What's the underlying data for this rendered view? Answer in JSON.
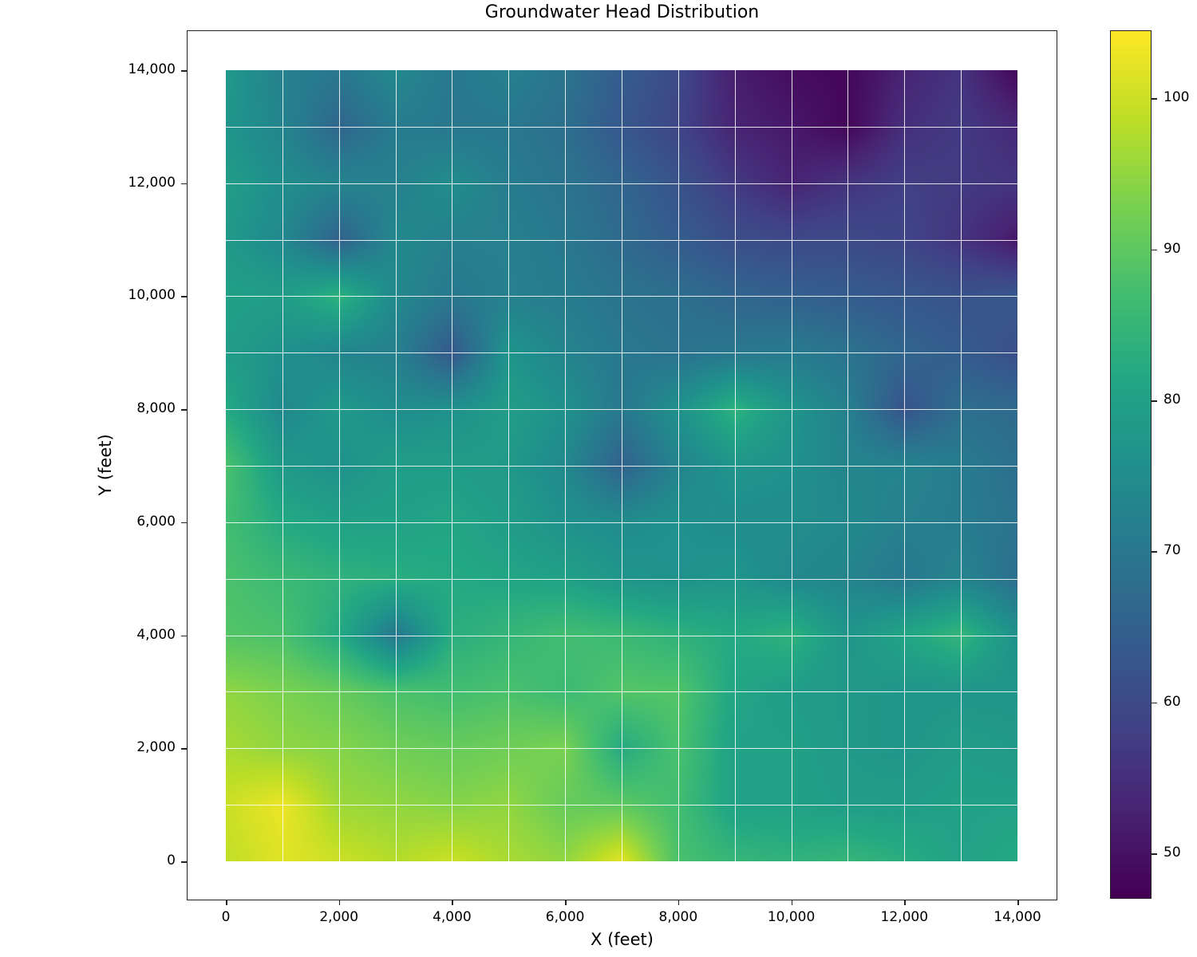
{
  "chart_data": {
    "type": "heatmap",
    "title": "Groundwater Head Distribution",
    "xlabel": "X (feet)",
    "ylabel": "Y (feet)",
    "xlim": [
      -700,
      14700
    ],
    "ylim": [
      -700,
      14700
    ],
    "x_ticks": [
      0,
      2000,
      4000,
      6000,
      8000,
      10000,
      12000,
      14000
    ],
    "x_tick_labels": [
      "0",
      "2,000",
      "4,000",
      "6,000",
      "8,000",
      "10,000",
      "12,000",
      "14,000"
    ],
    "y_ticks": [
      0,
      2000,
      4000,
      6000,
      8000,
      10000,
      12000,
      14000
    ],
    "y_tick_labels": [
      "0",
      "2,000",
      "4,000",
      "6,000",
      "8,000",
      "10,000",
      "12,000",
      "14,000"
    ],
    "grid": true,
    "grid_spacing": 1000,
    "colormap": "viridis",
    "colorbar": {
      "vmin": 47,
      "vmax": 104.5,
      "ticks": [
        50,
        60,
        70,
        80,
        90,
        100
      ],
      "tick_labels": [
        "50",
        "60",
        "70",
        "80",
        "90",
        "100"
      ]
    },
    "x": [
      0,
      1000,
      2000,
      3000,
      4000,
      5000,
      6000,
      7000,
      8000,
      9000,
      10000,
      11000,
      12000,
      13000,
      14000
    ],
    "y_rows_top_to_bottom": [
      14000,
      13000,
      12000,
      11000,
      10000,
      9000,
      8000,
      7000,
      6000,
      5000,
      4000,
      3000,
      2000,
      1000,
      0
    ],
    "values": [
      [
        78,
        72,
        70,
        74,
        70,
        72,
        69,
        64,
        60,
        52,
        49,
        48,
        53,
        56,
        48
      ],
      [
        77,
        73,
        66,
        71,
        70,
        70,
        68,
        63,
        59,
        53,
        51,
        48,
        55,
        57,
        54
      ],
      [
        79,
        75,
        73,
        72,
        75,
        71,
        69,
        66,
        62,
        57,
        53,
        56,
        58,
        57,
        56
      ],
      [
        78,
        74,
        65,
        74,
        72,
        72,
        70,
        67,
        64,
        61,
        60,
        60,
        59,
        56,
        51
      ],
      [
        80,
        79,
        84,
        74,
        70,
        72,
        71,
        69,
        68,
        66,
        65,
        64,
        63,
        62,
        63
      ],
      [
        79,
        76,
        73,
        72,
        63,
        77,
        73,
        70,
        69,
        70,
        71,
        69,
        66,
        64,
        61
      ],
      [
        82,
        74,
        78,
        75,
        76,
        79,
        76,
        70,
        76,
        84,
        77,
        72,
        62,
        68,
        67
      ],
      [
        88,
        78,
        76,
        79,
        79,
        78,
        74,
        65,
        73,
        77,
        76,
        73,
        73,
        71,
        68
      ],
      [
        87,
        82,
        80,
        80,
        81,
        79,
        76,
        75,
        76,
        75,
        75,
        74,
        72,
        71,
        69
      ],
      [
        88,
        86,
        84,
        83,
        82,
        81,
        80,
        77,
        76,
        77,
        74,
        73,
        70,
        73,
        68
      ],
      [
        89,
        88,
        82,
        70,
        83,
        85,
        87,
        86,
        84,
        82,
        84,
        77,
        81,
        85,
        76
      ],
      [
        95,
        93,
        91,
        88,
        87,
        88,
        86,
        89,
        89,
        81,
        79,
        78,
        77,
        77,
        77
      ],
      [
        97,
        95,
        94,
        92,
        91,
        92,
        93,
        82,
        88,
        80,
        80,
        78,
        77,
        79,
        78
      ],
      [
        100,
        103,
        96,
        95,
        94,
        95,
        91,
        90,
        87,
        80,
        80,
        79,
        79,
        80,
        80
      ],
      [
        99,
        102,
        100,
        98,
        100,
        97,
        95,
        102,
        88,
        85,
        84,
        85,
        83,
        80,
        82
      ]
    ]
  },
  "labels": {
    "title": "Groundwater Head Distribution",
    "xaxis": "X (feet)",
    "yaxis": "Y (feet)"
  }
}
